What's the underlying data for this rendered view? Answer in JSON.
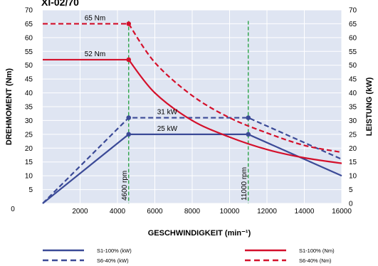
{
  "chart_data": {
    "type": "line",
    "title_fragment": "XI-02/70",
    "xlabel": "GESCHWINDIGKEIT (min⁻¹)",
    "ylabel_left": "DREHMOMENT (Nm)",
    "ylabel_right": "LEISTUNG (kW)",
    "xlim": [
      0,
      16000
    ],
    "ylim": [
      0,
      70
    ],
    "x_ticks": [
      "2000",
      "4000",
      "6000",
      "8000",
      "10000",
      "12000",
      "14000",
      "16000"
    ],
    "x_tick_values": [
      2000,
      4000,
      6000,
      8000,
      10000,
      12000,
      14000,
      16000
    ],
    "x_origin_label": "0",
    "y_ticks": [
      "0",
      "5",
      "10",
      "15",
      "20",
      "25",
      "30",
      "35",
      "40",
      "45",
      "50",
      "55",
      "60",
      "65",
      "70"
    ],
    "y_tick_values": [
      0,
      5,
      10,
      15,
      20,
      25,
      30,
      35,
      40,
      45,
      50,
      55,
      60,
      65,
      70
    ],
    "grid": true,
    "plot_background": "#dfe5f2",
    "colors": {
      "power": "#3b4a97",
      "torque": "#d4102b",
      "marker": "#1d9e3a"
    },
    "series": [
      {
        "name": "S1-100% (kW)",
        "style": "solid",
        "color": "#3b4a97",
        "x": [
          0,
          4600,
          11000,
          16000
        ],
        "y": [
          0,
          25,
          25,
          10
        ]
      },
      {
        "name": "S6-40% (kW)",
        "style": "dashed",
        "color": "#3b4a97",
        "x": [
          0,
          4600,
          11000,
          16000
        ],
        "y": [
          0,
          31,
          31,
          16
        ]
      },
      {
        "name": "S1-100% (Nm)",
        "style": "solid",
        "color": "#d4102b",
        "x": [
          0,
          4600,
          6000,
          8000,
          10000,
          12000,
          14000,
          16000
        ],
        "y": [
          52,
          52,
          40,
          30,
          24,
          19.5,
          16.5,
          14.5
        ]
      },
      {
        "name": "S6-40% (Nm)",
        "style": "dashed",
        "color": "#d4102b",
        "x": [
          0,
          4600,
          6000,
          8000,
          10000,
          12000,
          14000,
          16000
        ],
        "y": [
          65,
          65,
          51,
          39,
          31,
          25.5,
          21,
          18.5
        ]
      }
    ],
    "points": [
      {
        "x": 4600,
        "y": 65,
        "color": "#d4102b"
      },
      {
        "x": 4600,
        "y": 52,
        "color": "#d4102b"
      },
      {
        "x": 4600,
        "y": 31,
        "color": "#3b4a97"
      },
      {
        "x": 4600,
        "y": 25,
        "color": "#3b4a97"
      },
      {
        "x": 11000,
        "y": 31,
        "color": "#3b4a97"
      },
      {
        "x": 11000,
        "y": 25,
        "color": "#3b4a97"
      }
    ],
    "annotations": [
      {
        "text": "65 Nm",
        "x": 4600,
        "y": 65
      },
      {
        "text": "52 Nm",
        "x": 4600,
        "y": 52
      },
      {
        "text": "31 kW",
        "x": 4600,
        "y": 31
      },
      {
        "text": "25 kW",
        "x": 4600,
        "y": 25
      }
    ],
    "vlines": [
      {
        "x": 4600,
        "label": "4600 rpm"
      },
      {
        "x": 11000,
        "label": "11000 rpm"
      }
    ],
    "legend": {
      "position": "bottom",
      "items": [
        "S1-100% (kW)",
        "S6-40% (kW)",
        "S1-100% (Nm)",
        "S6-40% (Nm)"
      ]
    }
  }
}
